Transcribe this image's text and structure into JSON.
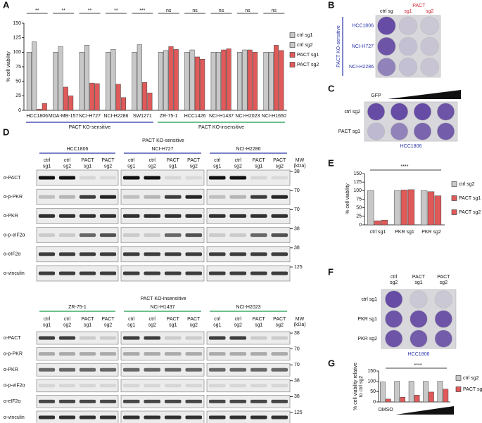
{
  "panel_labels": [
    "A",
    "B",
    "C",
    "D",
    "E",
    "F",
    "G"
  ],
  "chart_data": [
    {
      "type": "bar",
      "ylabel": "% cell viability",
      "groups": [
        {
          "name": "PACT KO-sensitive",
          "color": "#2a35a8",
          "categories": [
            "HCC1806",
            "MDA-MB-157",
            "NCI-H727",
            "NCI-H2286",
            "SW1271"
          ]
        },
        {
          "name": "PACT KO-insensitive",
          "color": "#1a9a4a",
          "categories": [
            "ZR-75-1",
            "HCC1426",
            "NCI-H1437",
            "NCI-H2023",
            "NCI-H1650"
          ]
        }
      ],
      "significance": [
        "**",
        "**",
        "**",
        "**",
        "***",
        "ns",
        "ns",
        "ns",
        "ns",
        "ns"
      ],
      "series": [
        {
          "name": "ctrl sg1",
          "color": "#c8c8c8",
          "values": [
            100,
            100,
            100,
            100,
            100,
            100,
            100,
            100,
            100,
            100
          ]
        },
        {
          "name": "ctrl sg2",
          "color": "#c8c8c8",
          "values": [
            118,
            110,
            112,
            105,
            113,
            103,
            104,
            100,
            104,
            100
          ]
        },
        {
          "name": "PACT sg1",
          "color": "#e05a5a",
          "values": [
            2,
            40,
            47,
            45,
            48,
            110,
            92,
            104,
            104,
            112
          ]
        },
        {
          "name": "PACT sg2",
          "color": "#e05a5a",
          "values": [
            12,
            25,
            46,
            22,
            30,
            105,
            88,
            106,
            100,
            103
          ]
        }
      ],
      "ylim": [
        0,
        150
      ],
      "yticks": [
        0,
        25,
        50,
        75,
        100,
        125,
        150
      ]
    },
    {
      "type": "bar",
      "ylabel": "% cell viability",
      "categories": [
        "ctrl sg1",
        "PKR sg1",
        "PKR sg2"
      ],
      "significance": "****",
      "series": [
        {
          "name": "ctrl sg2",
          "color": "#c8c8c8",
          "values": [
            100,
            100,
            100
          ]
        },
        {
          "name": "PACT sg1",
          "color": "#e05a5a",
          "values": [
            12,
            102,
            97
          ]
        },
        {
          "name": "PACT sg2",
          "color": "#e05a5a",
          "values": [
            14,
            103,
            85
          ]
        }
      ],
      "ylim": [
        0,
        150
      ],
      "yticks": [
        0,
        25,
        50,
        75,
        100,
        125,
        150
      ]
    },
    {
      "type": "bar",
      "ylabel": [
        "% cell viability relative",
        "to ctrl sg2"
      ],
      "categories": [
        "DMSO",
        null,
        null,
        null,
        null
      ],
      "gradient_label": "ISRIB",
      "significance": "****",
      "series": [
        {
          "name": "ctrl sg2",
          "color": "#c8c8c8",
          "values": [
            97,
            100,
            100,
            100,
            100
          ]
        },
        {
          "name": "PACT sg1",
          "color": "#e05a5a",
          "values": [
            14,
            23,
            33,
            48,
            62
          ]
        }
      ],
      "ylim": [
        0,
        150
      ],
      "yticks": [
        0,
        50,
        100,
        150
      ]
    }
  ],
  "plate_B": {
    "side_label": "PACT KO-sensitive",
    "columns": [
      "ctrl sg",
      "sg1",
      "sg2"
    ],
    "column_group": "PACT",
    "rows": [
      "HCC1806",
      "NCI-H727",
      "NCI-H2286"
    ]
  },
  "plate_C": {
    "left_label": "GFP",
    "gradient_label": "PACT",
    "rows": [
      "ctrl sg2",
      "PACT sg1"
    ],
    "cell_line": "HCC1806"
  },
  "plate_F": {
    "columns": [
      [
        "ctrl",
        "sg2"
      ],
      [
        "PACT",
        "sg1"
      ],
      [
        "PACT",
        "sg2"
      ]
    ],
    "rows": [
      "ctrl sg1",
      "PKR sg1",
      "PKR sg2"
    ],
    "cell_line": "HCC1806"
  },
  "blots": {
    "lanes": [
      [
        "ctrl",
        "sg1"
      ],
      [
        "ctrl",
        "sg2"
      ],
      [
        "PACT",
        "sg1"
      ],
      [
        "PACT",
        "sg2"
      ]
    ],
    "lane_colors": [
      "#111111",
      "#111111",
      "#d02030",
      "#d02030"
    ],
    "mw_header": [
      "MW",
      "(kDa)"
    ],
    "sections": [
      {
        "title": "PACT KO-sensitive",
        "color": "#2a35a8",
        "cell_lines": [
          "HCC1806",
          "NCI-H727",
          "NCI-H2286"
        ],
        "rows": [
          {
            "antibody": "α-PACT",
            "mw": 38
          },
          {
            "antibody": "α-p-PKR",
            "mw": 70
          },
          {
            "antibody": "α-PKR",
            "mw": 70
          },
          {
            "antibody": "α-p-eIF2α",
            "mw": 38
          },
          {
            "antibody": "α-eIF2α",
            "mw": 38
          },
          {
            "antibody": "α-vinculin",
            "mw": 125
          }
        ]
      },
      {
        "title": "PACT KO-insensitive",
        "color": "#1a9a4a",
        "cell_lines": [
          "ZR-75-1",
          "NCI-H1437",
          "NCI-H2023"
        ],
        "rows": [
          {
            "antibody": "α-PACT",
            "mw": 38
          },
          {
            "antibody": "α-p-PKR",
            "mw": 70
          },
          {
            "antibody": "α-PKR",
            "mw": 70
          },
          {
            "antibody": "α-p-eIF2α",
            "mw": 38
          },
          {
            "antibody": "α-eIF2α",
            "mw": 38
          },
          {
            "antibody": "α-vinculin",
            "mw": 125
          }
        ]
      }
    ]
  }
}
